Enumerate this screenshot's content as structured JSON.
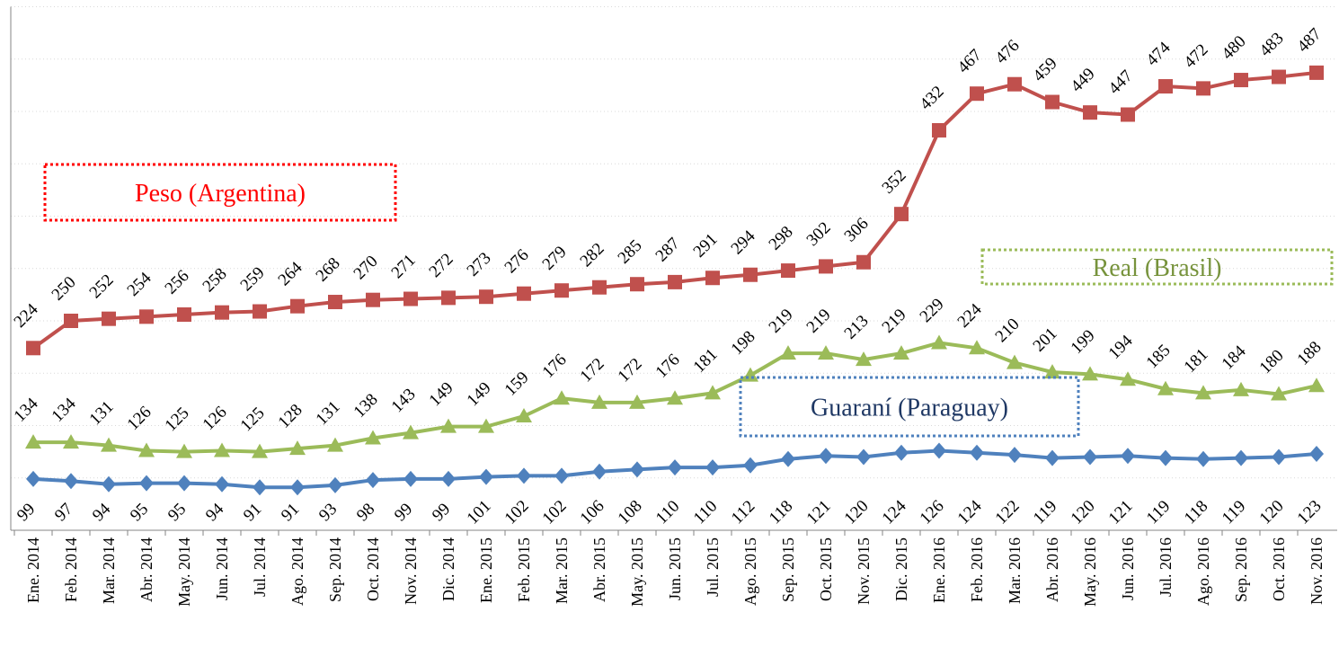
{
  "chart_data": {
    "type": "line",
    "categories": [
      "Ene. 2014",
      "Feb. 2014",
      "Mar. 2014",
      "Abr. 2014",
      "May. 2014",
      "Jun. 2014",
      "Jul. 2014",
      "Ago. 2014",
      "Sep. 2014",
      "Oct. 2014",
      "Nov. 2014",
      "Dic. 2014",
      "Ene. 2015",
      "Feb. 2015",
      "Mar. 2015",
      "Abr. 2015",
      "May. 2015",
      "Jun. 2015",
      "Jul. 2015",
      "Ago. 2015",
      "Sep. 2015",
      "Oct. 2015",
      "Nov. 2015",
      "Dic. 2015",
      "Ene. 2016",
      "Feb. 2016",
      "Mar. 2016",
      "Abr. 2016",
      "May. 2016",
      "Jun. 2016",
      "Jul. 2016",
      "Ago. 2016",
      "Sep. 2016",
      "Oct. 2016",
      "Nov. 2016"
    ],
    "series": [
      {
        "name": "Peso (Argentina)",
        "color": "#c0504d",
        "label_color": "#ff0000",
        "marker": "square",
        "values": [
          224,
          250,
          252,
          254,
          256,
          258,
          259,
          264,
          268,
          270,
          271,
          272,
          273,
          276,
          279,
          282,
          285,
          287,
          291,
          294,
          298,
          302,
          306,
          352,
          432,
          467,
          476,
          459,
          449,
          447,
          474,
          472,
          480,
          483,
          487
        ]
      },
      {
        "name": "Real (Brasil)",
        "color": "#9bbb59",
        "label_color": "#77933c",
        "marker": "triangle",
        "values": [
          134,
          134,
          131,
          126,
          125,
          126,
          125,
          128,
          131,
          138,
          143,
          149,
          149,
          159,
          176,
          172,
          172,
          176,
          181,
          198,
          219,
          219,
          213,
          219,
          229,
          224,
          210,
          201,
          199,
          194,
          185,
          181,
          184,
          180,
          188
        ]
      },
      {
        "name": "Guaraní (Paraguay)",
        "color": "#4f81bd",
        "label_color": "#1f3864",
        "marker": "diamond",
        "values": [
          99,
          97,
          94,
          95,
          95,
          94,
          91,
          91,
          93,
          98,
          99,
          99,
          101,
          102,
          102,
          106,
          108,
          110,
          110,
          112,
          118,
          121,
          120,
          124,
          126,
          124,
          122,
          119,
          120,
          121,
          119,
          118,
          119,
          120,
          123
        ]
      }
    ],
    "ylim": [
      50,
      550
    ],
    "yticks": [
      100,
      150,
      200,
      250,
      300,
      350,
      400,
      450,
      500,
      550
    ],
    "grid": true
  }
}
